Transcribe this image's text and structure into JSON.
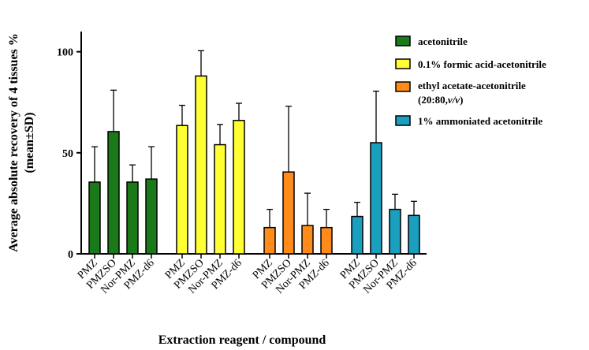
{
  "chart_data": {
    "type": "bar",
    "xlabel": "Extraction reagent / compound",
    "ylabel_line1": "Average absolute recovery of 4 tissues %",
    "ylabel_line2": "(mean±SD)",
    "ylim": [
      0,
      110
    ],
    "yticks": [
      0,
      50,
      100
    ],
    "legend_placement": "top-right",
    "categories": [
      "PMZ",
      "PMZSO",
      "Nor-PMZ",
      "PMZ-d6"
    ],
    "series": [
      {
        "name": "acetonitrile",
        "color": "#1a7a1a",
        "values": [
          35.5,
          60.5,
          35.5,
          37
        ],
        "sd": [
          17.5,
          20.5,
          8.5,
          16
        ]
      },
      {
        "name": "0.1% formic acid-acetonitrile",
        "color": "#ffff33",
        "values": [
          63.5,
          88,
          54,
          66
        ],
        "sd": [
          10,
          12.5,
          10,
          8.5
        ]
      },
      {
        "name": "ethyl acetate-acetonitrile",
        "name_line2_prefix": "(20:80,",
        "name_line2_italic": "v/v",
        "name_line2_suffix": ")",
        "color": "#ff8c1a",
        "values": [
          13,
          40.5,
          14,
          13
        ],
        "sd": [
          9,
          32.5,
          16,
          9
        ]
      },
      {
        "name": "1% ammoniated acetonitrile",
        "color": "#1a9fbf",
        "values": [
          18.5,
          55,
          22,
          19
        ],
        "sd": [
          7,
          25.5,
          7.5,
          7
        ]
      }
    ]
  }
}
